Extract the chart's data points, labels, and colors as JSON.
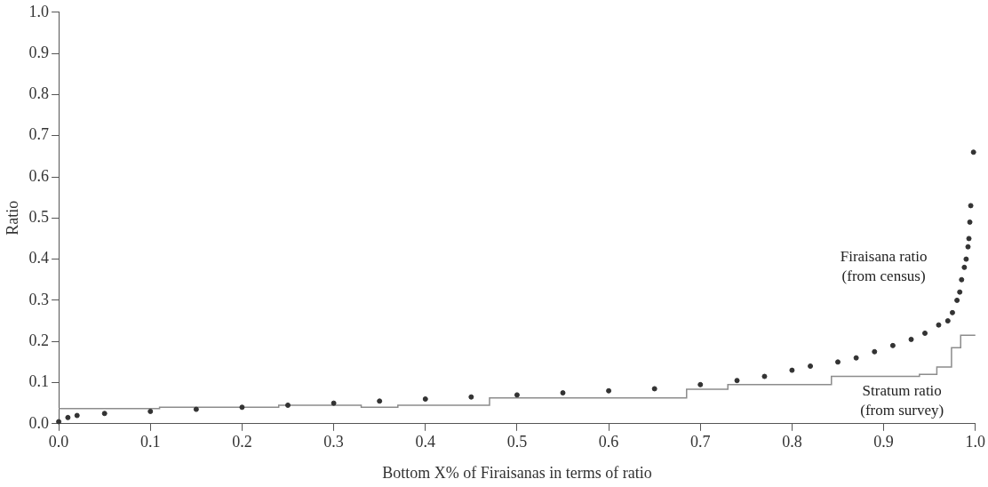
{
  "chart_data": {
    "type": "scatter",
    "xlabel": "Bottom X% of Firaisanas in terms of ratio",
    "ylabel": "Ratio",
    "xlim": [
      0,
      1
    ],
    "ylim": [
      0,
      1
    ],
    "xticks": [
      {
        "value": 0,
        "label": "0.0"
      },
      {
        "value": 0.1,
        "label": "0.1"
      },
      {
        "value": 0.2,
        "label": "0.2"
      },
      {
        "value": 0.3,
        "label": "0.3"
      },
      {
        "value": 0.4,
        "label": "0.4"
      },
      {
        "value": 0.5,
        "label": "0.5"
      },
      {
        "value": 0.6,
        "label": "0.6"
      },
      {
        "value": 0.7,
        "label": "0.7"
      },
      {
        "value": 0.8,
        "label": "0.8"
      },
      {
        "value": 0.9,
        "label": "0.9"
      },
      {
        "value": 1,
        "label": "1.0"
      }
    ],
    "yticks": [
      {
        "value": 0,
        "label": "0.0"
      },
      {
        "value": 0.1,
        "label": "0.1"
      },
      {
        "value": 0.2,
        "label": "0.2"
      },
      {
        "value": 0.3,
        "label": "0.3"
      },
      {
        "value": 0.4,
        "label": "0.4"
      },
      {
        "value": 0.5,
        "label": "0.5"
      },
      {
        "value": 0.6,
        "label": "0.6"
      },
      {
        "value": 0.7,
        "label": "0.7"
      },
      {
        "value": 0.8,
        "label": "0.8"
      },
      {
        "value": 0.9,
        "label": "0.9"
      },
      {
        "value": 1,
        "label": "1.0"
      }
    ],
    "grid": false,
    "series": [
      {
        "type": "step",
        "color": "#8c8c8c",
        "x": [
          0,
          0.11,
          0.24,
          0.33,
          0.37,
          0.47,
          0.685,
          0.73,
          0.843,
          0.939,
          0.958,
          0.974,
          0.984,
          1
        ],
        "values": [
          0.037,
          0.04,
          0.045,
          0.04,
          0.045,
          0.063,
          0.084,
          0.095,
          0.115,
          0.12,
          0.138,
          0.185,
          0.215,
          0.215
        ]
      },
      {
        "type": "scatter",
        "marker": "circle",
        "color": "#333333",
        "x": [
          0,
          0.01,
          0.02,
          0.05,
          0.1,
          0.15,
          0.2,
          0.25,
          0.3,
          0.35,
          0.4,
          0.45,
          0.5,
          0.55,
          0.6,
          0.65,
          0.7,
          0.74,
          0.77,
          0.8,
          0.82,
          0.85,
          0.87,
          0.89,
          0.91,
          0.93,
          0.945,
          0.96,
          0.97,
          0.975,
          0.98,
          0.983,
          0.985,
          0.988,
          0.99,
          0.992,
          0.993,
          0.994,
          0.995,
          0.998
        ],
        "values": [
          0.005,
          0.015,
          0.02,
          0.025,
          0.03,
          0.035,
          0.04,
          0.045,
          0.05,
          0.055,
          0.06,
          0.065,
          0.07,
          0.075,
          0.08,
          0.085,
          0.095,
          0.105,
          0.115,
          0.13,
          0.14,
          0.15,
          0.16,
          0.175,
          0.19,
          0.205,
          0.22,
          0.24,
          0.25,
          0.27,
          0.3,
          0.32,
          0.35,
          0.38,
          0.4,
          0.43,
          0.45,
          0.49,
          0.53,
          0.66
        ]
      }
    ],
    "annotations": [
      "Firaisana ratio\n(from census)",
      "Stratum ratio\n(from survey)"
    ]
  }
}
